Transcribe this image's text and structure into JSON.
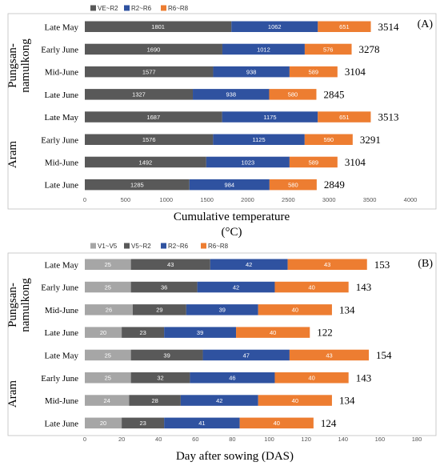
{
  "chart_data": [
    {
      "type": "bar",
      "orientation": "horizontal",
      "stacked": true,
      "panel_label": "(A)",
      "title": "",
      "xlabel_line1": "Cumulative temperature",
      "xlabel_line2": "(°C)",
      "ylabel": "",
      "xlim": [
        0,
        4000
      ],
      "xticks": [
        "0",
        "500",
        "1000",
        "1500",
        "2000",
        "2500",
        "3000",
        "3500",
        "4000"
      ],
      "legend_position": "top-left",
      "groups": [
        {
          "name_line1": "Pungsan-",
          "name_line2": "namulkong"
        },
        {
          "name_line1": "Aram",
          "name_line2": ""
        }
      ],
      "categories": [
        "Late May",
        "Early June",
        "Mid-June",
        "Late June",
        "Late May",
        "Early June",
        "Mid-June",
        "Late June"
      ],
      "series": [
        {
          "name": "VE~R2",
          "color": "#595959",
          "values": [
            1801,
            1690,
            1577,
            1327,
            1687,
            1576,
            1492,
            1285
          ]
        },
        {
          "name": "R2~R6",
          "color": "#2F52A0",
          "values": [
            1062,
            1012,
            938,
            938,
            1175,
            1125,
            1023,
            984
          ]
        },
        {
          "name": "R6~R8",
          "color": "#ED7D31",
          "values": [
            651,
            576,
            589,
            580,
            651,
            590,
            589,
            580
          ]
        }
      ],
      "totals": [
        3514,
        3278,
        3104,
        2845,
        3513,
        3291,
        3104,
        2849
      ]
    },
    {
      "type": "bar",
      "orientation": "horizontal",
      "stacked": true,
      "panel_label": "(B)",
      "title": "",
      "xlabel_line1": "Day after sowing (DAS)",
      "xlabel_line2": "",
      "ylabel": "",
      "xlim": [
        0,
        180
      ],
      "xticks": [
        "0",
        "20",
        "40",
        "60",
        "80",
        "100",
        "120",
        "140",
        "160",
        "180"
      ],
      "legend_position": "top-left",
      "groups": [
        {
          "name_line1": "Pungsan-",
          "name_line2": "namulkong"
        },
        {
          "name_line1": "Aram",
          "name_line2": ""
        }
      ],
      "categories": [
        "Late May",
        "Early June",
        "Mid-June",
        "Late June",
        "Late May",
        "Early June",
        "Mid-June",
        "Late June"
      ],
      "series": [
        {
          "name": "V1~V5",
          "color": "#A6A6A6",
          "values": [
            25,
            25,
            26,
            20,
            25,
            25,
            24,
            20
          ]
        },
        {
          "name": "V5~R2",
          "color": "#595959",
          "values": [
            43,
            36,
            29,
            23,
            39,
            32,
            28,
            23
          ]
        },
        {
          "name": "R2~R6",
          "color": "#2F52A0",
          "values": [
            42,
            42,
            39,
            39,
            47,
            46,
            42,
            41
          ]
        },
        {
          "name": "R6~R8",
          "color": "#ED7D31",
          "values": [
            43,
            40,
            40,
            40,
            43,
            40,
            40,
            40
          ]
        }
      ],
      "totals": [
        153,
        143,
        134,
        122,
        154,
        143,
        134,
        124
      ]
    }
  ]
}
